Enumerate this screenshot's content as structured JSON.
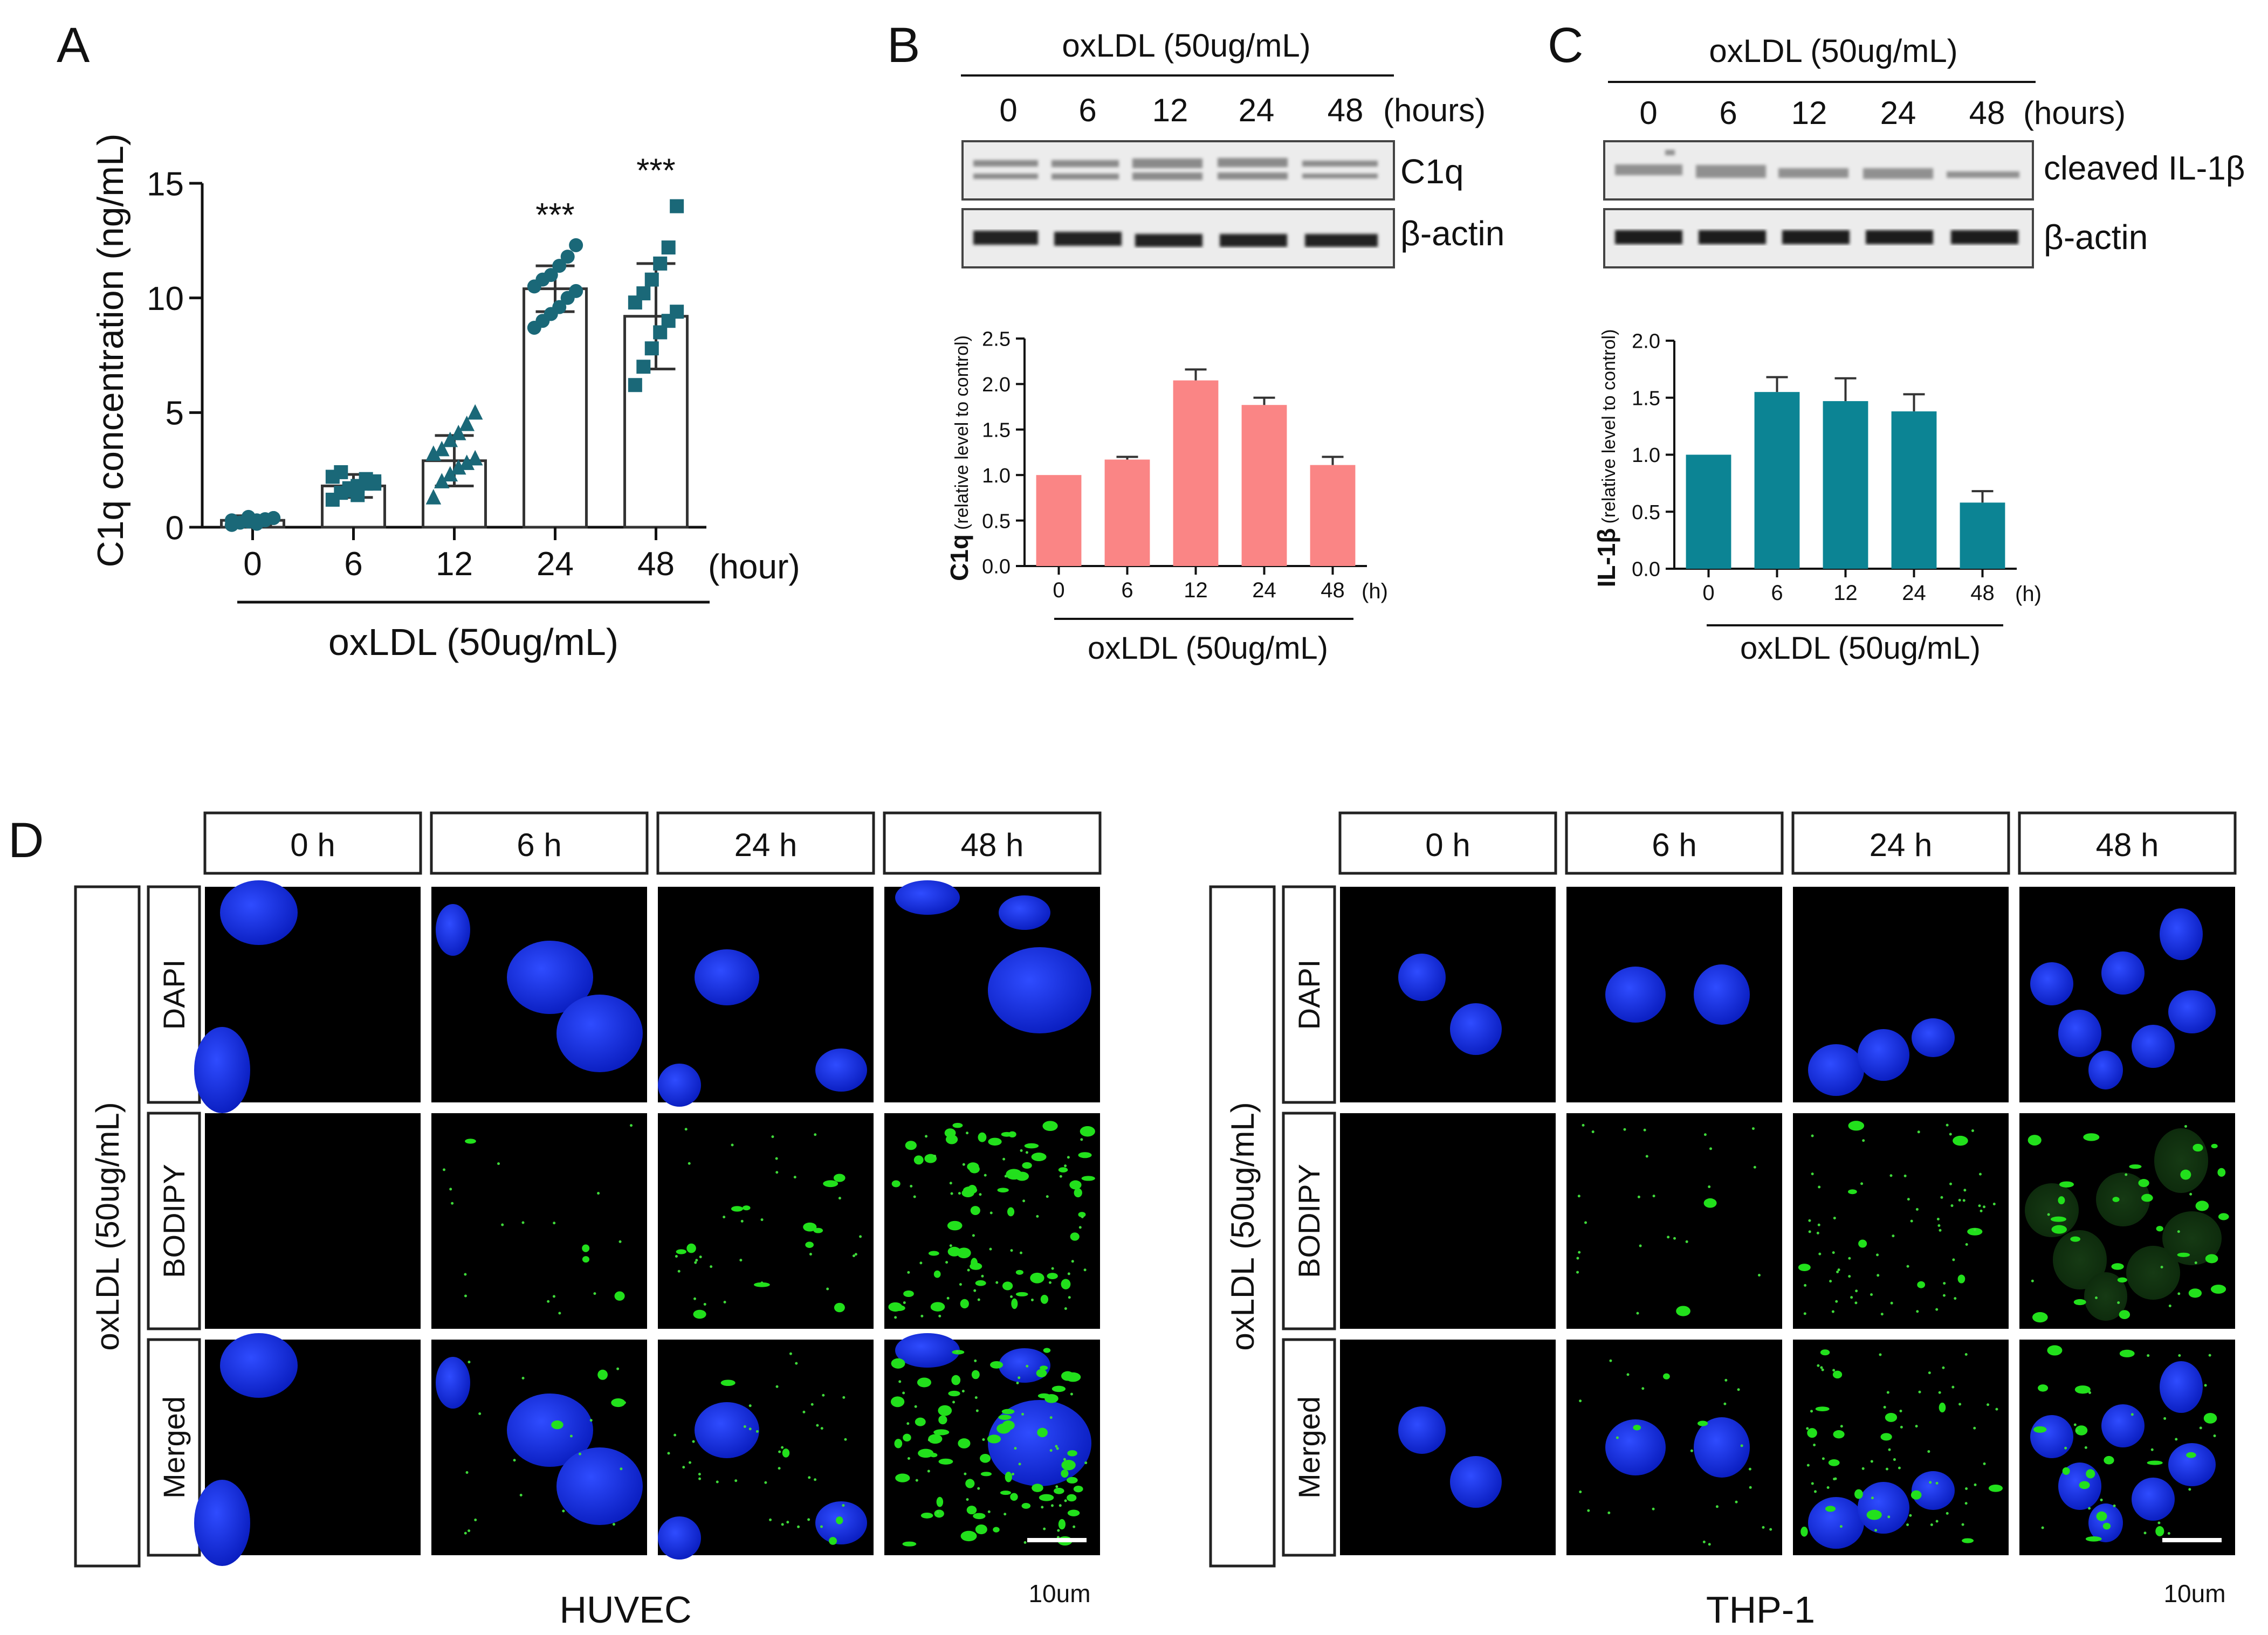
{
  "panel_a": {
    "letter": "A",
    "ylabel": "C1q concentration (ng/mL)",
    "xunit": "(hour)",
    "xlabel": "oxLDL (50ug/mL)",
    "sig_label": "***"
  },
  "panel_b": {
    "letter": "B",
    "header": "oxLDL (50ug/mL)",
    "times": [
      "0",
      "6",
      "12",
      "24",
      "48"
    ],
    "unit": "(hours)",
    "bands": [
      "C1q",
      "β-actin"
    ],
    "ylabel_main": "C1q",
    "ylabel_sub": "(relative level to control)",
    "xunit": "(h)",
    "xlabel": "oxLDL (50ug/mL)"
  },
  "panel_c": {
    "letter": "C",
    "header": "oxLDL (50ug/mL)",
    "times": [
      "0",
      "6",
      "12",
      "24",
      "48"
    ],
    "unit": "(hours)",
    "bands": [
      "cleaved IL-1β",
      "β-actin"
    ],
    "ylabel_main": "IL-1β",
    "ylabel_sub": "(relative level to control)",
    "xunit": "(h)",
    "xlabel": "oxLDL (50ug/mL)"
  },
  "panel_d": {
    "letter": "D",
    "grids": [
      {
        "cell": "HUVEC",
        "side_label": "oxLDL (50ug/mL)",
        "times": [
          "0 h",
          "6 h",
          "24 h",
          "48 h"
        ],
        "rows": [
          "DAPI",
          "BODIPY",
          "Merged"
        ],
        "scale_bar": "10um"
      },
      {
        "cell": "THP-1",
        "side_label": "oxLDL (50ug/mL)",
        "times": [
          "0 h",
          "6 h",
          "24 h",
          "48 h"
        ],
        "rows": [
          "DAPI",
          "BODIPY",
          "Merged"
        ],
        "scale_bar": "10um"
      }
    ]
  },
  "chart_data": [
    {
      "type": "bar",
      "id": "A",
      "title": "",
      "categories": [
        "0",
        "6",
        "12",
        "24",
        "48"
      ],
      "values": [
        0.3,
        1.8,
        2.9,
        10.4,
        9.2
      ],
      "errors": [
        0.2,
        0.5,
        1.1,
        1.0,
        2.3
      ],
      "significance": [
        "",
        "",
        "",
        "***",
        "***"
      ],
      "points": [
        [
          0.1,
          0.2,
          0.25,
          0.3,
          0.35,
          0.4,
          0.3,
          0.2,
          0.45,
          0.15,
          0.3,
          0.4
        ],
        [
          1.2,
          1.5,
          1.7,
          1.8,
          1.9,
          2.0,
          2.2,
          2.4,
          1.6,
          1.4,
          2.1,
          1.9
        ],
        [
          1.3,
          2.0,
          2.3,
          2.6,
          2.8,
          3.0,
          3.2,
          3.4,
          3.8,
          4.1,
          4.5,
          5.0
        ],
        [
          8.7,
          9.0,
          9.3,
          9.6,
          10.0,
          10.3,
          10.5,
          10.8,
          11.0,
          11.4,
          11.8,
          12.3
        ],
        [
          6.2,
          7.0,
          7.8,
          8.5,
          9.0,
          9.4,
          9.8,
          10.2,
          10.8,
          11.5,
          12.2,
          14.0
        ]
      ],
      "xlabel": "oxLDL (50ug/mL)",
      "ylabel": "C1q concentration (ng/mL)",
      "ylim": [
        0,
        15
      ],
      "yticks": [
        0,
        5,
        10,
        15
      ],
      "colors": {
        "bar": "#ffffff",
        "points": "#1a6878"
      }
    },
    {
      "type": "bar",
      "id": "B",
      "categories": [
        "0",
        "6",
        "12",
        "24",
        "48"
      ],
      "values": [
        1.0,
        1.17,
        2.04,
        1.77,
        1.11
      ],
      "errors": [
        0.0,
        0.03,
        0.12,
        0.08,
        0.09
      ],
      "xlabel": "oxLDL (50ug/mL)",
      "ylabel": "C1q (relative level to control)",
      "ylim": [
        0,
        2.5
      ],
      "yticks": [
        "0.0",
        "0.5",
        "1.0",
        "1.5",
        "2.0",
        "2.5"
      ],
      "colors": {
        "bar": "#fa8585"
      }
    },
    {
      "type": "bar",
      "id": "C",
      "categories": [
        "0",
        "6",
        "12",
        "24",
        "48"
      ],
      "values": [
        1.0,
        1.55,
        1.47,
        1.38,
        0.58
      ],
      "errors": [
        0.0,
        0.13,
        0.2,
        0.15,
        0.1
      ],
      "xlabel": "oxLDL (50ug/mL)",
      "ylabel": "IL-1β (relative level to control)",
      "ylim": [
        0,
        2.0
      ],
      "yticks": [
        "0.0",
        "0.5",
        "1.0",
        "1.5",
        "2.0"
      ],
      "colors": {
        "bar": "#0c8494"
      }
    }
  ]
}
